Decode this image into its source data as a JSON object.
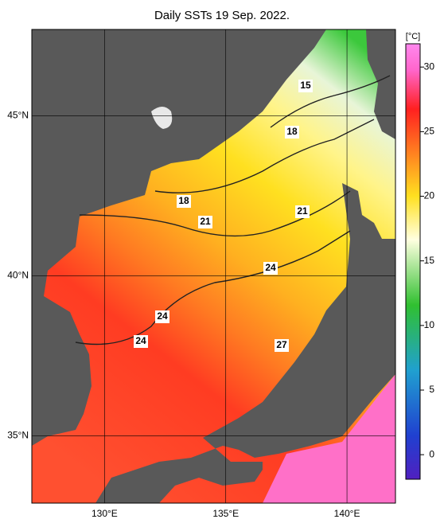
{
  "title": "Daily SSTs 19 Sep. 2022.",
  "map": {
    "lon_range": [
      127,
      142
    ],
    "lat_range": [
      32.9,
      47.7
    ],
    "lon_ticks": [
      {
        "value": 130,
        "label": "130°E"
      },
      {
        "value": 135,
        "label": "135°E"
      },
      {
        "value": 140,
        "label": "140°E"
      }
    ],
    "lat_ticks": [
      {
        "value": 45,
        "label": "45°N"
      },
      {
        "value": 40,
        "label": "40°N"
      },
      {
        "value": 35,
        "label": "35°N"
      }
    ]
  },
  "colorbar": {
    "unit": "[°C]",
    "range": [
      -1.9,
      31.8
    ],
    "ticks": [
      0,
      5,
      10,
      15,
      20,
      25,
      30
    ]
  },
  "contour_labels": [
    15,
    18,
    18,
    21,
    21,
    24,
    24,
    24,
    27
  ]
}
